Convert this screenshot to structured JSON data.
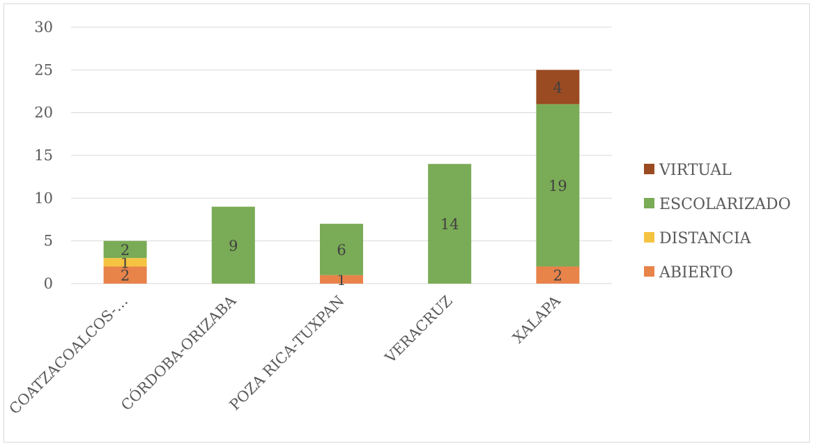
{
  "chart_data": {
    "type": "bar",
    "stacked": true,
    "categories": [
      "COATZACOALCOS-…",
      "CÓRDOBA-ORIZABA",
      "POZA RICA-TUXPAN",
      "VERACRUZ",
      "XALAPA"
    ],
    "series": [
      {
        "name": "ABIERTO",
        "color": "#E8834A",
        "values": [
          2,
          0,
          1,
          0,
          2
        ]
      },
      {
        "name": "DISTANCIA",
        "color": "#F5C342",
        "values": [
          1,
          0,
          0,
          0,
          0
        ]
      },
      {
        "name": "ESCOLARIZADO",
        "color": "#7AAB56",
        "values": [
          2,
          9,
          6,
          14,
          19
        ]
      },
      {
        "name": "VIRTUAL",
        "color": "#9B4B22",
        "values": [
          0,
          0,
          0,
          0,
          4
        ]
      }
    ],
    "ylim": [
      0,
      30
    ],
    "yticks": [
      0,
      5,
      10,
      15,
      20,
      25,
      30
    ],
    "grid": true,
    "legend_position": "right",
    "legend_order": [
      "VIRTUAL",
      "ESCOLARIZADO",
      "DISTANCIA",
      "ABIERTO"
    ],
    "title": "",
    "xlabel": "",
    "ylabel": ""
  }
}
